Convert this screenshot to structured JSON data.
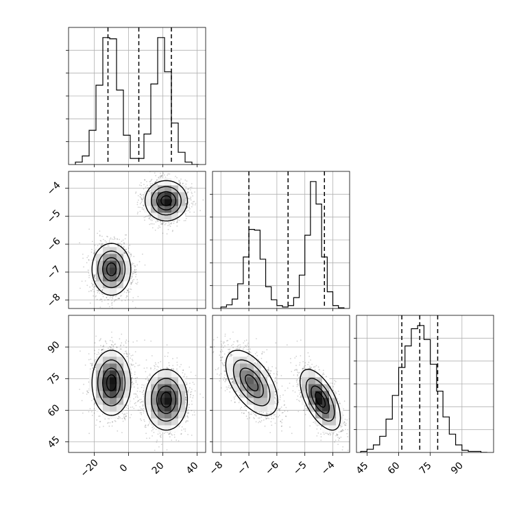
{
  "chart_data": {
    "type": "corner",
    "parameters": [
      {
        "index": 0,
        "range": [
          -35,
          45
        ],
        "ticks": [
          -20,
          0,
          20,
          40
        ],
        "tick_labels": [
          "−20",
          "0",
          "20",
          "40"
        ]
      },
      {
        "index": 1,
        "range": [
          -8.3,
          -3.4
        ],
        "ticks": [
          -8,
          -7,
          -6,
          -5,
          -4
        ],
        "tick_labels": [
          "−8",
          "−7",
          "−6",
          "−5",
          "−4"
        ]
      },
      {
        "index": 2,
        "range": [
          40,
          105
        ],
        "ticks": [
          45,
          60,
          75,
          90
        ],
        "tick_labels": [
          "45",
          "60",
          "75",
          "90"
        ]
      }
    ],
    "grid": true,
    "quantile_lines": [
      [
        -12,
        6,
        25
      ],
      [
        -7,
        -5.6,
        -4.3
      ],
      [
        61.5,
        70,
        78.5
      ]
    ],
    "histograms": [
      {
        "param": 0,
        "edges": [
          -31,
          -27,
          -23,
          -19,
          -15,
          -11,
          -7,
          -3,
          1,
          5,
          9,
          13,
          17,
          21,
          25,
          29,
          33,
          37,
          41
        ],
        "counts": [
          2,
          7,
          28,
          65,
          104,
          103,
          61,
          24,
          5,
          5,
          25,
          66,
          104,
          76,
          34,
          10,
          2,
          0
        ]
      },
      {
        "param": 1,
        "edges": [
          -8.0,
          -7.8,
          -7.6,
          -7.4,
          -7.2,
          -7.0,
          -6.8,
          -6.6,
          -6.4,
          -6.2,
          -6.0,
          -5.8,
          -5.6,
          -5.4,
          -5.2,
          -5.0,
          -4.8,
          -4.6,
          -4.4,
          -4.2,
          -4.0,
          -3.8,
          -3.6
        ],
        "counts": [
          2,
          5,
          13,
          34,
          71,
          109,
          108,
          68,
          30,
          12,
          4,
          2,
          4,
          15,
          46,
          101,
          175,
          144,
          71,
          23,
          4,
          1
        ]
      },
      {
        "param": 2,
        "edges": [
          42,
          45,
          48,
          51,
          54,
          57,
          60,
          63,
          66,
          69,
          72,
          75,
          78,
          81,
          84,
          87,
          90,
          93,
          96,
          99,
          102
        ],
        "counts": [
          1,
          3,
          7,
          15,
          31,
          53,
          79,
          99,
          115,
          118,
          105,
          82,
          57,
          33,
          17,
          7,
          2,
          1,
          1,
          0
        ]
      }
    ],
    "clusters": [
      {
        "mean": [
          -10,
          -6.9,
          73
        ],
        "sd": [
          5.5,
          0.45,
          7.5
        ],
        "corr": {
          "0-1": 0.0,
          "0-2": 0.0,
          "1-2": -0.55
        }
      },
      {
        "mean": [
          22,
          -4.45,
          65
        ],
        "sd": [
          6.0,
          0.35,
          7.0
        ],
        "corr": {
          "0-1": 0.0,
          "0-2": 0.0,
          "1-2": -0.6
        }
      }
    ]
  }
}
